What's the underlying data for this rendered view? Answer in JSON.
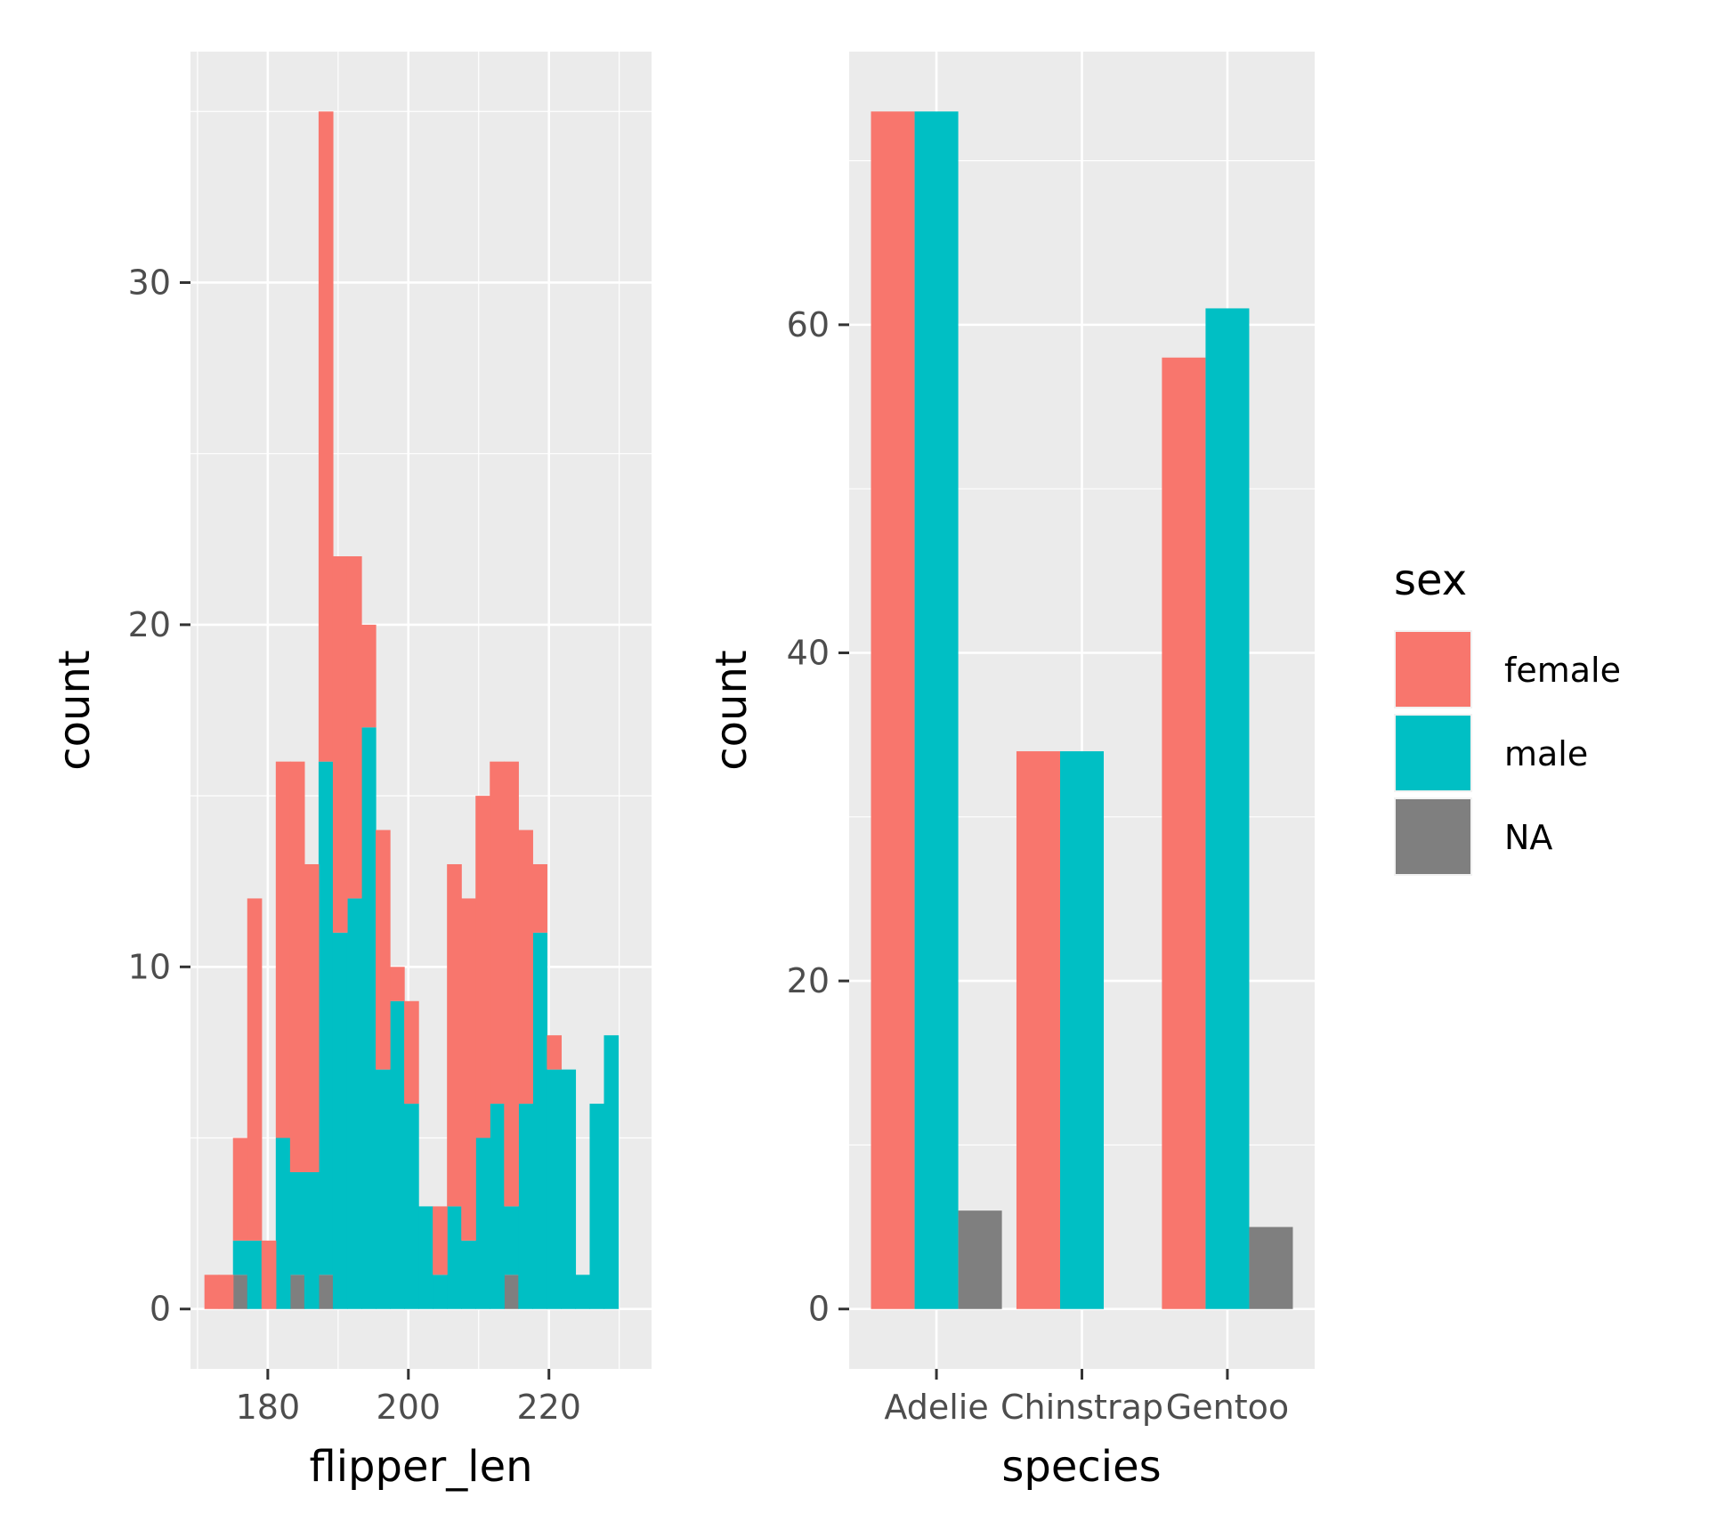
{
  "colors": {
    "female": "#F8766D",
    "male": "#00BFC4",
    "NA": "#7F7F7F",
    "panel_bg": "#EBEBEB",
    "grid": "#FFFFFF",
    "tick_text": "#4D4D4D"
  },
  "legend": {
    "title": "sex",
    "items": [
      {
        "label": "female",
        "color": "#F8766D"
      },
      {
        "label": "male",
        "color": "#00BFC4"
      },
      {
        "label": "NA",
        "color": "#7F7F7F"
      }
    ]
  },
  "chart_data": [
    {
      "type": "bar",
      "subtype": "stacked histogram",
      "xlabel": "flipper_len",
      "ylabel": "count",
      "xlim": [
        169,
        234.6
      ],
      "ylim": [
        -1.75,
        36.75
      ],
      "xticks": [
        180,
        200,
        220
      ],
      "yticks": [
        0,
        10,
        20,
        30
      ],
      "bin_width": 2.03,
      "bins_x": [
        172,
        174.03,
        176.06,
        178.09,
        180.12,
        182.15,
        184.18,
        186.21,
        188.24,
        190.27,
        192.3,
        194.33,
        196.36,
        198.39,
        200.42,
        202.45,
        204.48,
        206.51,
        208.54,
        210.57,
        212.6,
        214.63,
        216.66,
        218.69,
        220.72,
        222.75,
        224.78,
        226.81,
        228.84,
        230.87
      ],
      "series": [
        {
          "name": "NA",
          "values": [
            0,
            0,
            1,
            0,
            0,
            0,
            1,
            0,
            1,
            0,
            0,
            0,
            0,
            0,
            0,
            0,
            0,
            0,
            0,
            0,
            0,
            1,
            0,
            0,
            0,
            0,
            0,
            0,
            0,
            0
          ]
        },
        {
          "name": "male",
          "values": [
            0,
            0,
            1,
            2,
            0,
            5,
            3,
            4,
            15,
            11,
            12,
            17,
            7,
            9,
            6,
            3,
            1,
            3,
            2,
            5,
            6,
            2,
            6,
            11,
            7,
            7,
            1,
            6,
            8,
            0
          ]
        },
        {
          "name": "female",
          "values": [
            1,
            1,
            3,
            10,
            2,
            11,
            12,
            9,
            19,
            11,
            10,
            3,
            7,
            1,
            3,
            0,
            2,
            10,
            10,
            10,
            10,
            13,
            8,
            2,
            1,
            0,
            0,
            0,
            0,
            0
          ]
        }
      ]
    },
    {
      "type": "bar",
      "subtype": "dodged",
      "xlabel": "species",
      "ylabel": "count",
      "ylim": [
        -3.65,
        76.65
      ],
      "yticks": [
        0,
        20,
        40,
        60
      ],
      "categories": [
        "Adelie",
        "Chinstrap",
        "Gentoo"
      ],
      "series": [
        {
          "name": "female",
          "values": [
            73,
            34,
            58
          ]
        },
        {
          "name": "male",
          "values": [
            73,
            34,
            61
          ]
        },
        {
          "name": "NA",
          "values": [
            6,
            0,
            5
          ]
        }
      ]
    }
  ]
}
